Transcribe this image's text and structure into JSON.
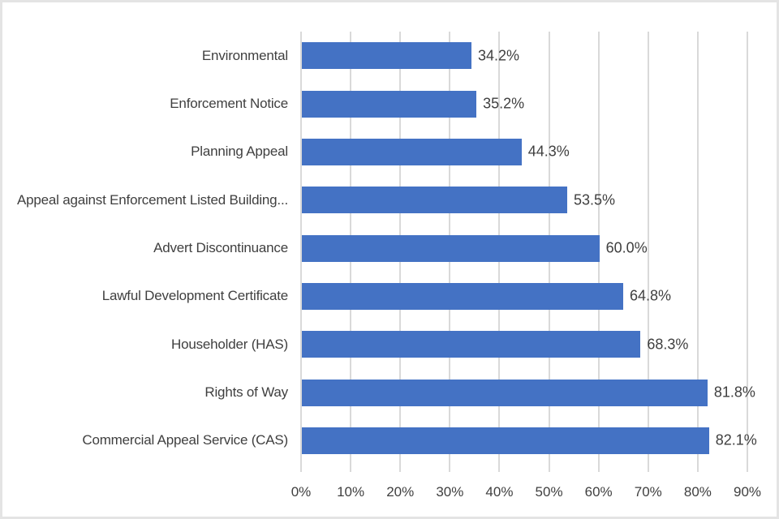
{
  "window": {
    "background_color": "#ffffff",
    "border_color": "#e4e4e4"
  },
  "chart_data": {
    "type": "bar",
    "orientation": "horizontal",
    "title": "",
    "xlabel": "",
    "ylabel": "",
    "categories": [
      "Environmental",
      "Enforcement Notice",
      "Planning Appeal",
      "Appeal against Enforcement Listed Building...",
      "Advert Discontinuance",
      "Lawful Development Certificate",
      "Householder (HAS)",
      "Rights of Way",
      "Commercial Appeal Service (CAS)"
    ],
    "values": [
      34.2,
      35.2,
      44.3,
      53.5,
      60.0,
      64.8,
      68.3,
      81.8,
      82.1
    ],
    "data_labels": [
      "34.2%",
      "35.2%",
      "44.3%",
      "53.5%",
      "60.0%",
      "64.8%",
      "68.3%",
      "81.8%",
      "82.1%"
    ],
    "xlim": [
      0,
      90
    ],
    "x_tick_values": [
      0,
      10,
      20,
      30,
      40,
      50,
      60,
      70,
      80,
      90
    ],
    "x_tick_labels": [
      "0%",
      "10%",
      "20%",
      "30%",
      "40%",
      "50%",
      "60%",
      "70%",
      "80%",
      "90%"
    ],
    "grid": "vertical-only",
    "legend": "none",
    "bar_color": "#4472c4",
    "gridline_color": "#d9d9d9",
    "text_color": "#3f3f3f"
  }
}
